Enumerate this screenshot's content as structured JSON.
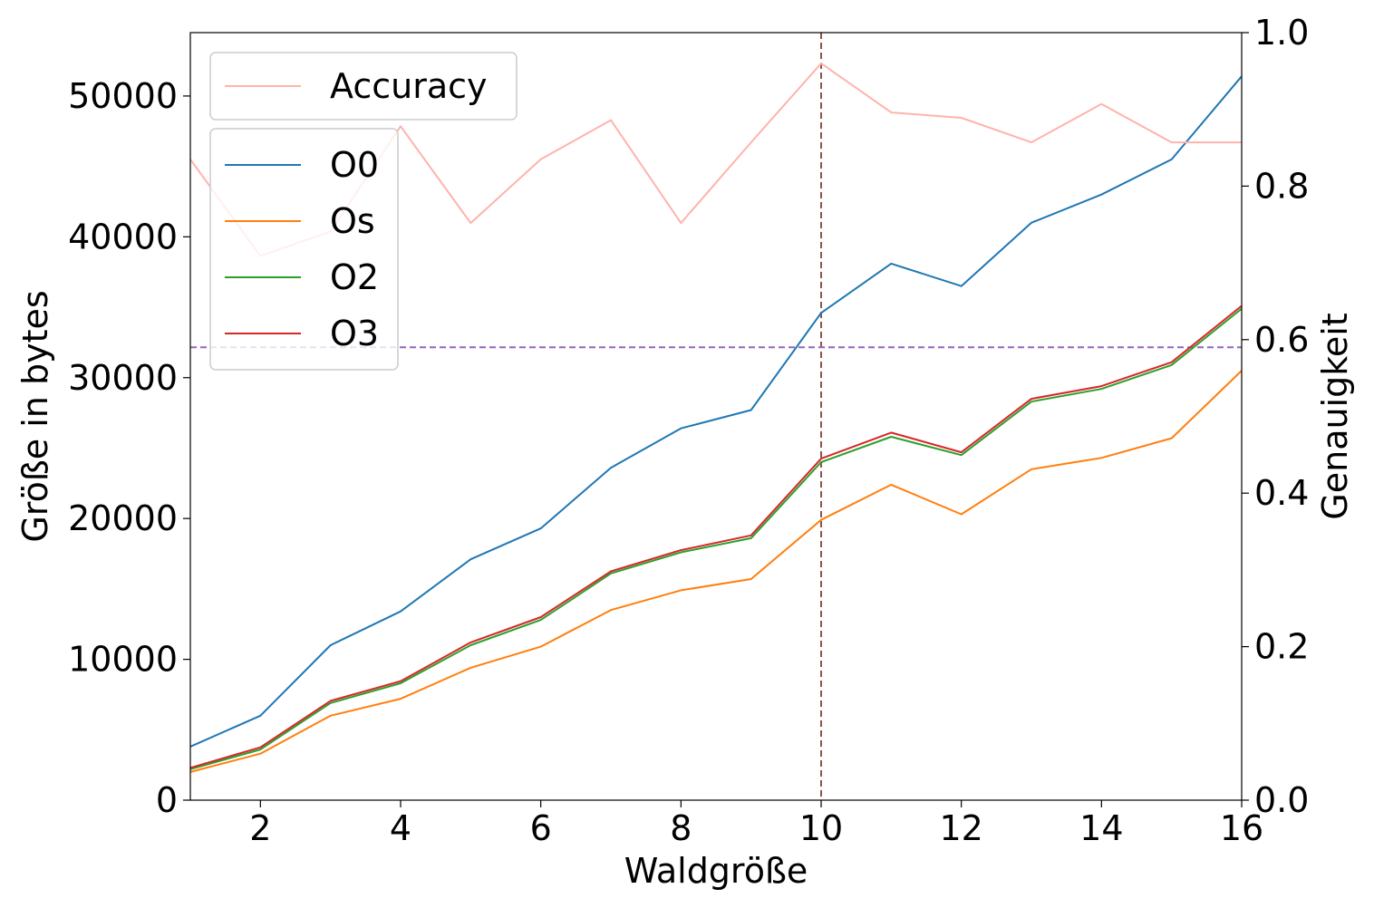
{
  "chart_data": {
    "type": "line",
    "x": [
      1,
      2,
      3,
      4,
      5,
      6,
      7,
      8,
      9,
      10,
      11,
      12,
      13,
      14,
      15,
      16
    ],
    "xlabel": "Waldgröße",
    "ylabel": "Größe in bytes",
    "y2label": "Genauigkeit",
    "xlim": [
      1,
      16
    ],
    "ylim": [
      0,
      54500
    ],
    "y2lim": [
      0.0,
      1.0
    ],
    "xticks": [
      2,
      4,
      6,
      8,
      10,
      12,
      14,
      16
    ],
    "yticks": [
      0,
      10000,
      20000,
      30000,
      40000,
      50000
    ],
    "y2ticks": [
      "0.0",
      "0.2",
      "0.4",
      "0.6",
      "0.8",
      "1.0"
    ],
    "series": [
      {
        "name": "O0",
        "color": "#1f77b4",
        "axis": "left",
        "values": [
          3800,
          6000,
          11000,
          13400,
          17100,
          19300,
          23600,
          26400,
          27700,
          34600,
          38100,
          36500,
          41000,
          43000,
          45500,
          51400
        ]
      },
      {
        "name": "Os",
        "color": "#ff7f0e",
        "axis": "left",
        "values": [
          2000,
          3300,
          6000,
          7200,
          9400,
          10900,
          13500,
          14900,
          15700,
          19900,
          22400,
          20300,
          23500,
          24300,
          25700,
          30500
        ]
      },
      {
        "name": "O2",
        "color": "#2ca02c",
        "axis": "left",
        "values": [
          2200,
          3600,
          6900,
          8300,
          11000,
          12800,
          16100,
          17600,
          18600,
          24000,
          25800,
          24500,
          28300,
          29200,
          30900,
          34900
        ]
      },
      {
        "name": "O3",
        "color": "#d62728",
        "axis": "left",
        "values": [
          2300,
          3750,
          7050,
          8450,
          11200,
          13000,
          16250,
          17750,
          18800,
          24250,
          26100,
          24700,
          28500,
          29400,
          31100,
          35100
        ]
      },
      {
        "name": "Accuracy",
        "color": "#ffb3ab",
        "axis": "right",
        "values": [
          0.835,
          0.709,
          0.741,
          0.878,
          0.752,
          0.835,
          0.886,
          0.752,
          0.857,
          0.96,
          0.896,
          0.889,
          0.857,
          0.907,
          0.857,
          0.857
        ]
      }
    ],
    "reference_lines": [
      {
        "orientation": "vertical",
        "x": 10,
        "color": "#8c564b",
        "style": "dashed"
      },
      {
        "orientation": "horizontal",
        "y2": 0.59,
        "color": "#9467bd",
        "style": "dashed"
      }
    ],
    "legends": [
      {
        "placement": "top-left",
        "entries": [
          "Accuracy"
        ]
      },
      {
        "placement": "upper-left",
        "entries": [
          "O0",
          "Os",
          "O2",
          "O3"
        ]
      }
    ],
    "grid": false
  }
}
